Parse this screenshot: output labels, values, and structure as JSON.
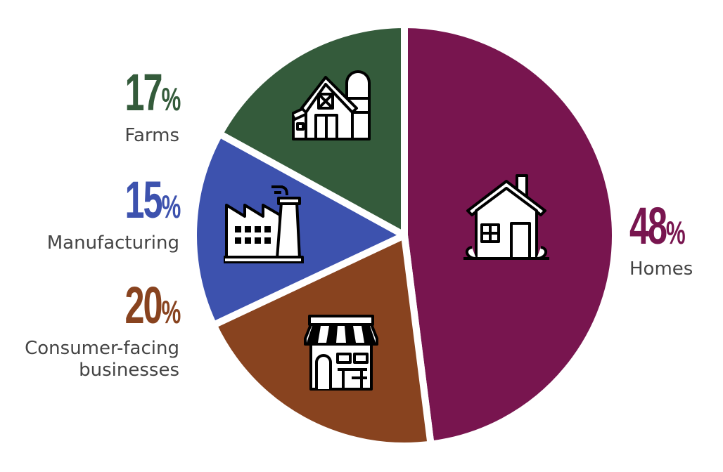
{
  "chart_data": {
    "type": "pie",
    "title": "",
    "start": "top, clockwise",
    "slices": [
      {
        "label": "Homes",
        "value": 48,
        "display": "48",
        "color": "#78154f",
        "icon": "house-icon"
      },
      {
        "label": "Consumer-facing businesses",
        "label_lines": [
          "Consumer-facing",
          "businesses"
        ],
        "value": 20,
        "display": "20",
        "color": "#88431f",
        "icon": "storefront-icon"
      },
      {
        "label": "Manufacturing",
        "value": 15,
        "display": "15",
        "color": "#3d52ae",
        "icon": "factory-icon"
      },
      {
        "label": "Farms",
        "value": 17,
        "display": "17",
        "color": "#345b3b",
        "icon": "barn-icon"
      }
    ],
    "percent_sign": "%"
  }
}
